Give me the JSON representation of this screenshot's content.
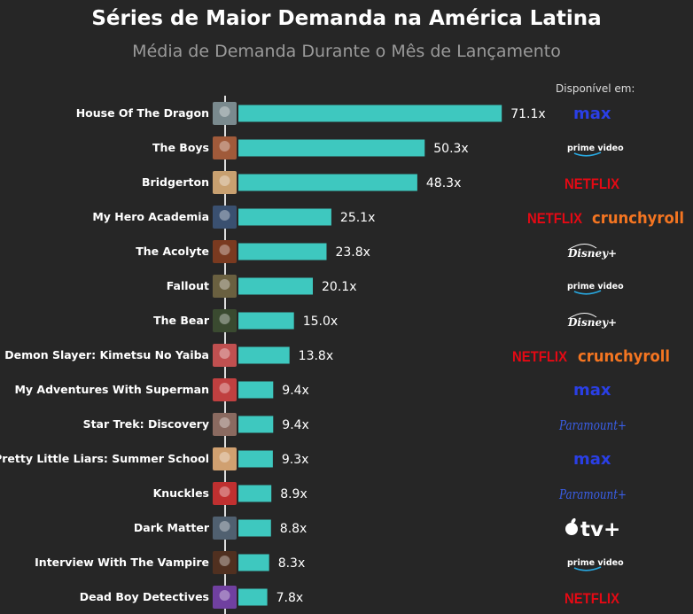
{
  "header": {
    "title": "Séries de Maior Demanda na América Latina",
    "subtitle": "Média de Demanda Durante o Mês de Lançamento",
    "available_label": "Disponível em:"
  },
  "colors": {
    "bar": "#3ec8bf",
    "background": "#262626",
    "max": "#2a3fe6",
    "prime": "#ffffff",
    "netflix": "#e50914",
    "crunchyroll": "#f47521",
    "disney": "#ffffff",
    "paramount": "#3a5ee8",
    "appletv": "#ffffff"
  },
  "chart_data": {
    "type": "bar",
    "orientation": "horizontal",
    "title": "Séries de Maior Demanda na América Latina",
    "subtitle": "Média de Demanda Durante o Mês de Lançamento",
    "categories": [
      "House Of The Dragon",
      "The Boys",
      "Bridgerton",
      "My Hero Academia",
      "The Acolyte",
      "Fallout",
      "The Bear",
      "Demon Slayer: Kimetsu No Yaiba",
      "My Adventures With Superman",
      "Star Trek: Discovery",
      "Pretty Little Liars: Summer School",
      "Knuckles",
      "Dark Matter",
      "Interview With The Vampire",
      "Dead Boy Detectives"
    ],
    "values": [
      71.1,
      50.3,
      48.3,
      25.1,
      23.8,
      20.1,
      15.0,
      13.8,
      9.4,
      9.4,
      9.3,
      8.9,
      8.8,
      8.3,
      7.8
    ],
    "value_labels": [
      "71.1x",
      "50.3x",
      "48.3x",
      "25.1x",
      "23.8x",
      "20.1x",
      "15.0x",
      "13.8x",
      "9.4x",
      "9.4x",
      "9.3x",
      "8.9x",
      "8.8x",
      "8.3x",
      "7.8x"
    ],
    "platforms": [
      [
        "max"
      ],
      [
        "prime"
      ],
      [
        "netflix"
      ],
      [
        "netflix",
        "crunchyroll"
      ],
      [
        "disney"
      ],
      [
        "prime"
      ],
      [
        "disney"
      ],
      [
        "netflix",
        "crunchyroll"
      ],
      [
        "max"
      ],
      [
        "paramount"
      ],
      [
        "max"
      ],
      [
        "paramount"
      ],
      [
        "appletv"
      ],
      [
        "prime"
      ],
      [
        "netflix"
      ]
    ],
    "platform_labels": {
      "max": "max",
      "prime": "prime video",
      "netflix": "NETFLIX",
      "crunchyroll": "crunchyroll",
      "disney": "Disney+",
      "paramount": "Paramount+",
      "appletv": "tv+"
    },
    "legend": "none",
    "grid": false
  }
}
